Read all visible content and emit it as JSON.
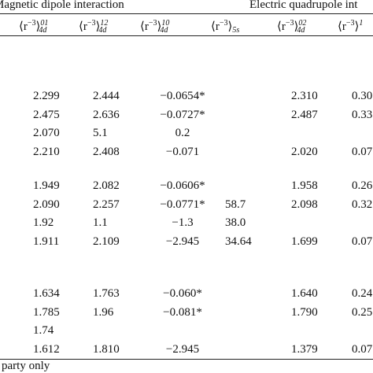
{
  "table": {
    "spanners": [
      "Magnetic dipole interaction",
      "Electric quadrupole int"
    ],
    "header": [
      {
        "base": "⟨r",
        "exp": "−3",
        "close": "⟩",
        "sup": "01",
        "sub": "4d"
      },
      {
        "base": "⟨r",
        "exp": "−3",
        "close": "⟩",
        "sup": "12",
        "sub": "4d"
      },
      {
        "base": "⟨r",
        "exp": "−3",
        "close": "⟩",
        "sup": "10",
        "sub": "4d"
      },
      {
        "base": "⟨r",
        "exp": "−3",
        "close": "⟩",
        "sup": null,
        "sub": "5s"
      },
      {
        "base": "⟨r",
        "exp": "−3",
        "close": "⟩",
        "sup": "02",
        "sub": "4d"
      },
      {
        "base": "⟨r",
        "exp": "−3",
        "close": "⟩",
        "sup": "1",
        "sub": null
      }
    ],
    "groups": [
      [
        [
          "2.299",
          "2.444",
          "−0.0654*",
          null,
          "2.310",
          "0.30"
        ],
        [
          "2.475",
          "2.636",
          "−0.0727*",
          null,
          "2.487",
          "0.33"
        ],
        [
          "2.070",
          "5.1",
          "0.2",
          null,
          null,
          null
        ],
        [
          "2.210",
          "2.408",
          "−0.071",
          null,
          "2.020",
          "0.07"
        ]
      ],
      [
        [
          "1.949",
          "2.082",
          "−0.0606*",
          null,
          "1.958",
          "0.26"
        ],
        [
          "2.090",
          "2.257",
          "−0.0771*",
          "58.7",
          "2.098",
          "0.32"
        ],
        [
          "1.92",
          "1.1",
          "−1.3",
          "38.0",
          null,
          null
        ],
        [
          "1.911",
          "2.109",
          "−2.945",
          "34.64",
          "1.699",
          "0.07"
        ]
      ],
      [
        [
          "1.634",
          "1.763",
          "−0.060*",
          null,
          "1.640",
          "0.24"
        ],
        [
          "1.785",
          "1.96",
          "−0.081*",
          null,
          "1.790",
          "0.25"
        ],
        [
          "1.74",
          null,
          null,
          null,
          null,
          null
        ],
        [
          "1.612",
          "1.810",
          "−2.945",
          null,
          "1.379",
          "0.07"
        ]
      ]
    ],
    "footnote": "party only"
  }
}
